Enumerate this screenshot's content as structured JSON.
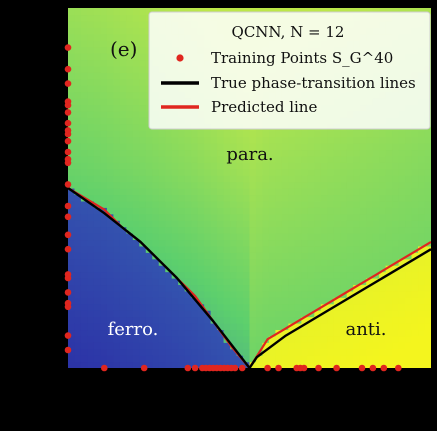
{
  "chart_data": {
    "type": "heatmap",
    "panel_label": "(e)",
    "legend": {
      "title": "QCNN, N = 12",
      "entries": [
        {
          "label": "Training Points S_G^40",
          "marker": "dot",
          "color": "#e0261f"
        },
        {
          "label": "True phase-transition lines",
          "marker": "line",
          "color": "#000000"
        },
        {
          "label": "Predicted line",
          "marker": "line",
          "color": "#e0261f"
        }
      ],
      "position": "top-right"
    },
    "regions": [
      {
        "name": "para.",
        "color": "#111111"
      },
      {
        "name": "ferro.",
        "color": "#ffffff"
      },
      {
        "name": "anti.",
        "color": "#111111"
      }
    ],
    "xlim": [
      0,
      1
    ],
    "ylim": [
      0,
      1
    ],
    "colormap": [
      "#2b2fa6",
      "#3b6fb5",
      "#5ccf6d",
      "#b8e64c",
      "#f4f51e"
    ],
    "true_lines": [
      {
        "name": "left",
        "x": [
          0,
          0.1,
          0.2,
          0.3,
          0.4,
          0.5
        ],
        "y": [
          0.5,
          0.43,
          0.35,
          0.25,
          0.13,
          0.0
        ]
      },
      {
        "name": "right",
        "x": [
          0.5,
          0.52,
          0.6,
          0.7,
          0.8,
          0.9,
          1.0
        ],
        "y": [
          0.0,
          0.03,
          0.09,
          0.15,
          0.21,
          0.27,
          0.33
        ]
      }
    ],
    "predicted_lines": [
      {
        "name": "left",
        "x": [
          0,
          0.05,
          0.1,
          0.15,
          0.2,
          0.25,
          0.3,
          0.35,
          0.4,
          0.45,
          0.5
        ],
        "y": [
          0.5,
          0.47,
          0.44,
          0.39,
          0.35,
          0.3,
          0.25,
          0.2,
          0.13,
          0.06,
          0.0
        ]
      },
      {
        "name": "right",
        "x": [
          0.5,
          0.55,
          0.6,
          0.65,
          0.7,
          0.75,
          0.8,
          0.85,
          0.9,
          0.95,
          1.0
        ],
        "y": [
          0.0,
          0.08,
          0.11,
          0.14,
          0.17,
          0.2,
          0.23,
          0.26,
          0.29,
          0.32,
          0.35
        ]
      }
    ],
    "training_points": {
      "left_edge_y": [
        0.05,
        0.09,
        0.17,
        0.18,
        0.21,
        0.25,
        0.26,
        0.33,
        0.37,
        0.42,
        0.45,
        0.51,
        0.57,
        0.58,
        0.6,
        0.63,
        0.65,
        0.66,
        0.68,
        0.71,
        0.74,
        0.73,
        0.79,
        0.83,
        0.89
      ],
      "bottom_edge_x": [
        0.1,
        0.21,
        0.33,
        0.35,
        0.37,
        0.38,
        0.39,
        0.4,
        0.41,
        0.42,
        0.43,
        0.44,
        0.45,
        0.46,
        0.48,
        0.55,
        0.58,
        0.63,
        0.64,
        0.65,
        0.69,
        0.74,
        0.81,
        0.84,
        0.87,
        0.91
      ]
    }
  }
}
